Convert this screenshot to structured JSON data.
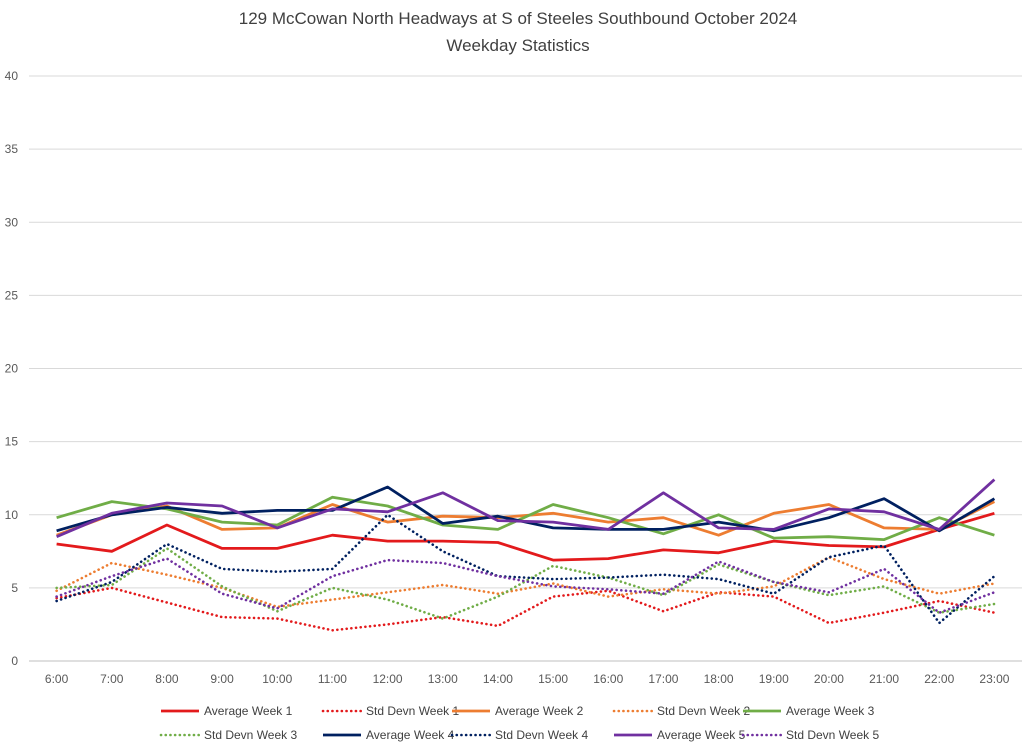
{
  "chart_data": {
    "type": "line",
    "title": "129 McCowan North Headways at S of Steeles Southbound October 2024",
    "subtitle": "Weekday Statistics",
    "xlabel": "",
    "ylabel": "",
    "ylim": [
      0,
      40
    ],
    "yticks": [
      0,
      5,
      10,
      15,
      20,
      25,
      30,
      35,
      40
    ],
    "grid": true,
    "legend_position": "bottom",
    "categories": [
      "6:00",
      "7:00",
      "8:00",
      "9:00",
      "10:00",
      "11:00",
      "12:00",
      "13:00",
      "14:00",
      "15:00",
      "16:00",
      "17:00",
      "18:00",
      "19:00",
      "20:00",
      "21:00",
      "22:00",
      "23:00"
    ],
    "series": [
      {
        "name": "Average Week 1",
        "color": "#e31a1c",
        "style": "solid",
        "values": [
          8.0,
          7.5,
          9.3,
          7.7,
          7.7,
          8.6,
          8.2,
          8.2,
          8.1,
          6.9,
          7.0,
          7.6,
          7.4,
          8.2,
          7.9,
          7.8,
          9.0,
          10.1
        ]
      },
      {
        "name": "Std Devn Week 1",
        "color": "#e31a1c",
        "style": "dotted",
        "values": [
          4.3,
          5.0,
          4.0,
          3.0,
          2.9,
          2.1,
          2.5,
          3.0,
          2.4,
          4.4,
          4.8,
          3.4,
          4.7,
          4.4,
          2.6,
          3.3,
          4.1,
          3.3
        ]
      },
      {
        "name": "Average Week 2",
        "color": "#ed7d31",
        "style": "solid",
        "values": [
          8.6,
          10.0,
          10.6,
          9.0,
          9.1,
          10.7,
          9.5,
          9.9,
          9.8,
          10.1,
          9.5,
          9.8,
          8.6,
          10.1,
          10.7,
          9.1,
          9.0,
          10.9
        ]
      },
      {
        "name": "Std Devn Week 2",
        "color": "#ed7d31",
        "style": "dotted",
        "values": [
          4.8,
          6.7,
          5.9,
          5.0,
          3.7,
          4.2,
          4.7,
          5.2,
          4.6,
          5.3,
          4.4,
          4.9,
          4.6,
          5.1,
          7.1,
          5.6,
          4.6,
          5.3
        ]
      },
      {
        "name": "Average Week 3",
        "color": "#70ad47",
        "style": "solid",
        "values": [
          9.8,
          10.9,
          10.4,
          9.5,
          9.3,
          11.2,
          10.6,
          9.3,
          9.0,
          10.7,
          9.8,
          8.7,
          10.0,
          8.4,
          8.5,
          8.3,
          9.8,
          8.6
        ]
      },
      {
        "name": "Std Devn Week 3",
        "color": "#70ad47",
        "style": "dotted",
        "values": [
          5.0,
          5.2,
          7.7,
          5.1,
          3.4,
          5.0,
          4.2,
          2.9,
          4.4,
          6.5,
          5.7,
          4.5,
          6.6,
          5.4,
          4.5,
          5.1,
          3.3,
          3.9
        ]
      },
      {
        "name": "Average Week 4",
        "color": "#002060",
        "style": "solid",
        "values": [
          8.9,
          10.0,
          10.5,
          10.1,
          10.3,
          10.3,
          11.9,
          9.4,
          9.9,
          9.1,
          9.0,
          9.0,
          9.5,
          8.9,
          9.8,
          11.1,
          8.9,
          11.1
        ]
      },
      {
        "name": "Std Devn Week 4",
        "color": "#002060",
        "style": "dotted",
        "values": [
          4.1,
          5.4,
          8.0,
          6.3,
          6.1,
          6.3,
          10.0,
          7.5,
          5.8,
          5.6,
          5.7,
          5.9,
          5.6,
          4.6,
          7.1,
          7.9,
          2.6,
          5.8
        ]
      },
      {
        "name": "Average Week 5",
        "color": "#7030a0",
        "style": "solid",
        "values": [
          8.5,
          10.1,
          10.8,
          10.6,
          9.1,
          10.4,
          10.2,
          11.5,
          9.6,
          9.5,
          9.0,
          11.5,
          9.1,
          9.0,
          10.4,
          10.2,
          9.0,
          12.4
        ]
      },
      {
        "name": "Std Devn Week 5",
        "color": "#7030a0",
        "style": "dotted",
        "values": [
          4.4,
          5.8,
          7.0,
          4.6,
          3.6,
          5.8,
          6.9,
          6.7,
          5.8,
          5.1,
          4.9,
          4.6,
          6.8,
          5.4,
          4.7,
          6.3,
          3.3,
          4.7
        ]
      }
    ]
  }
}
